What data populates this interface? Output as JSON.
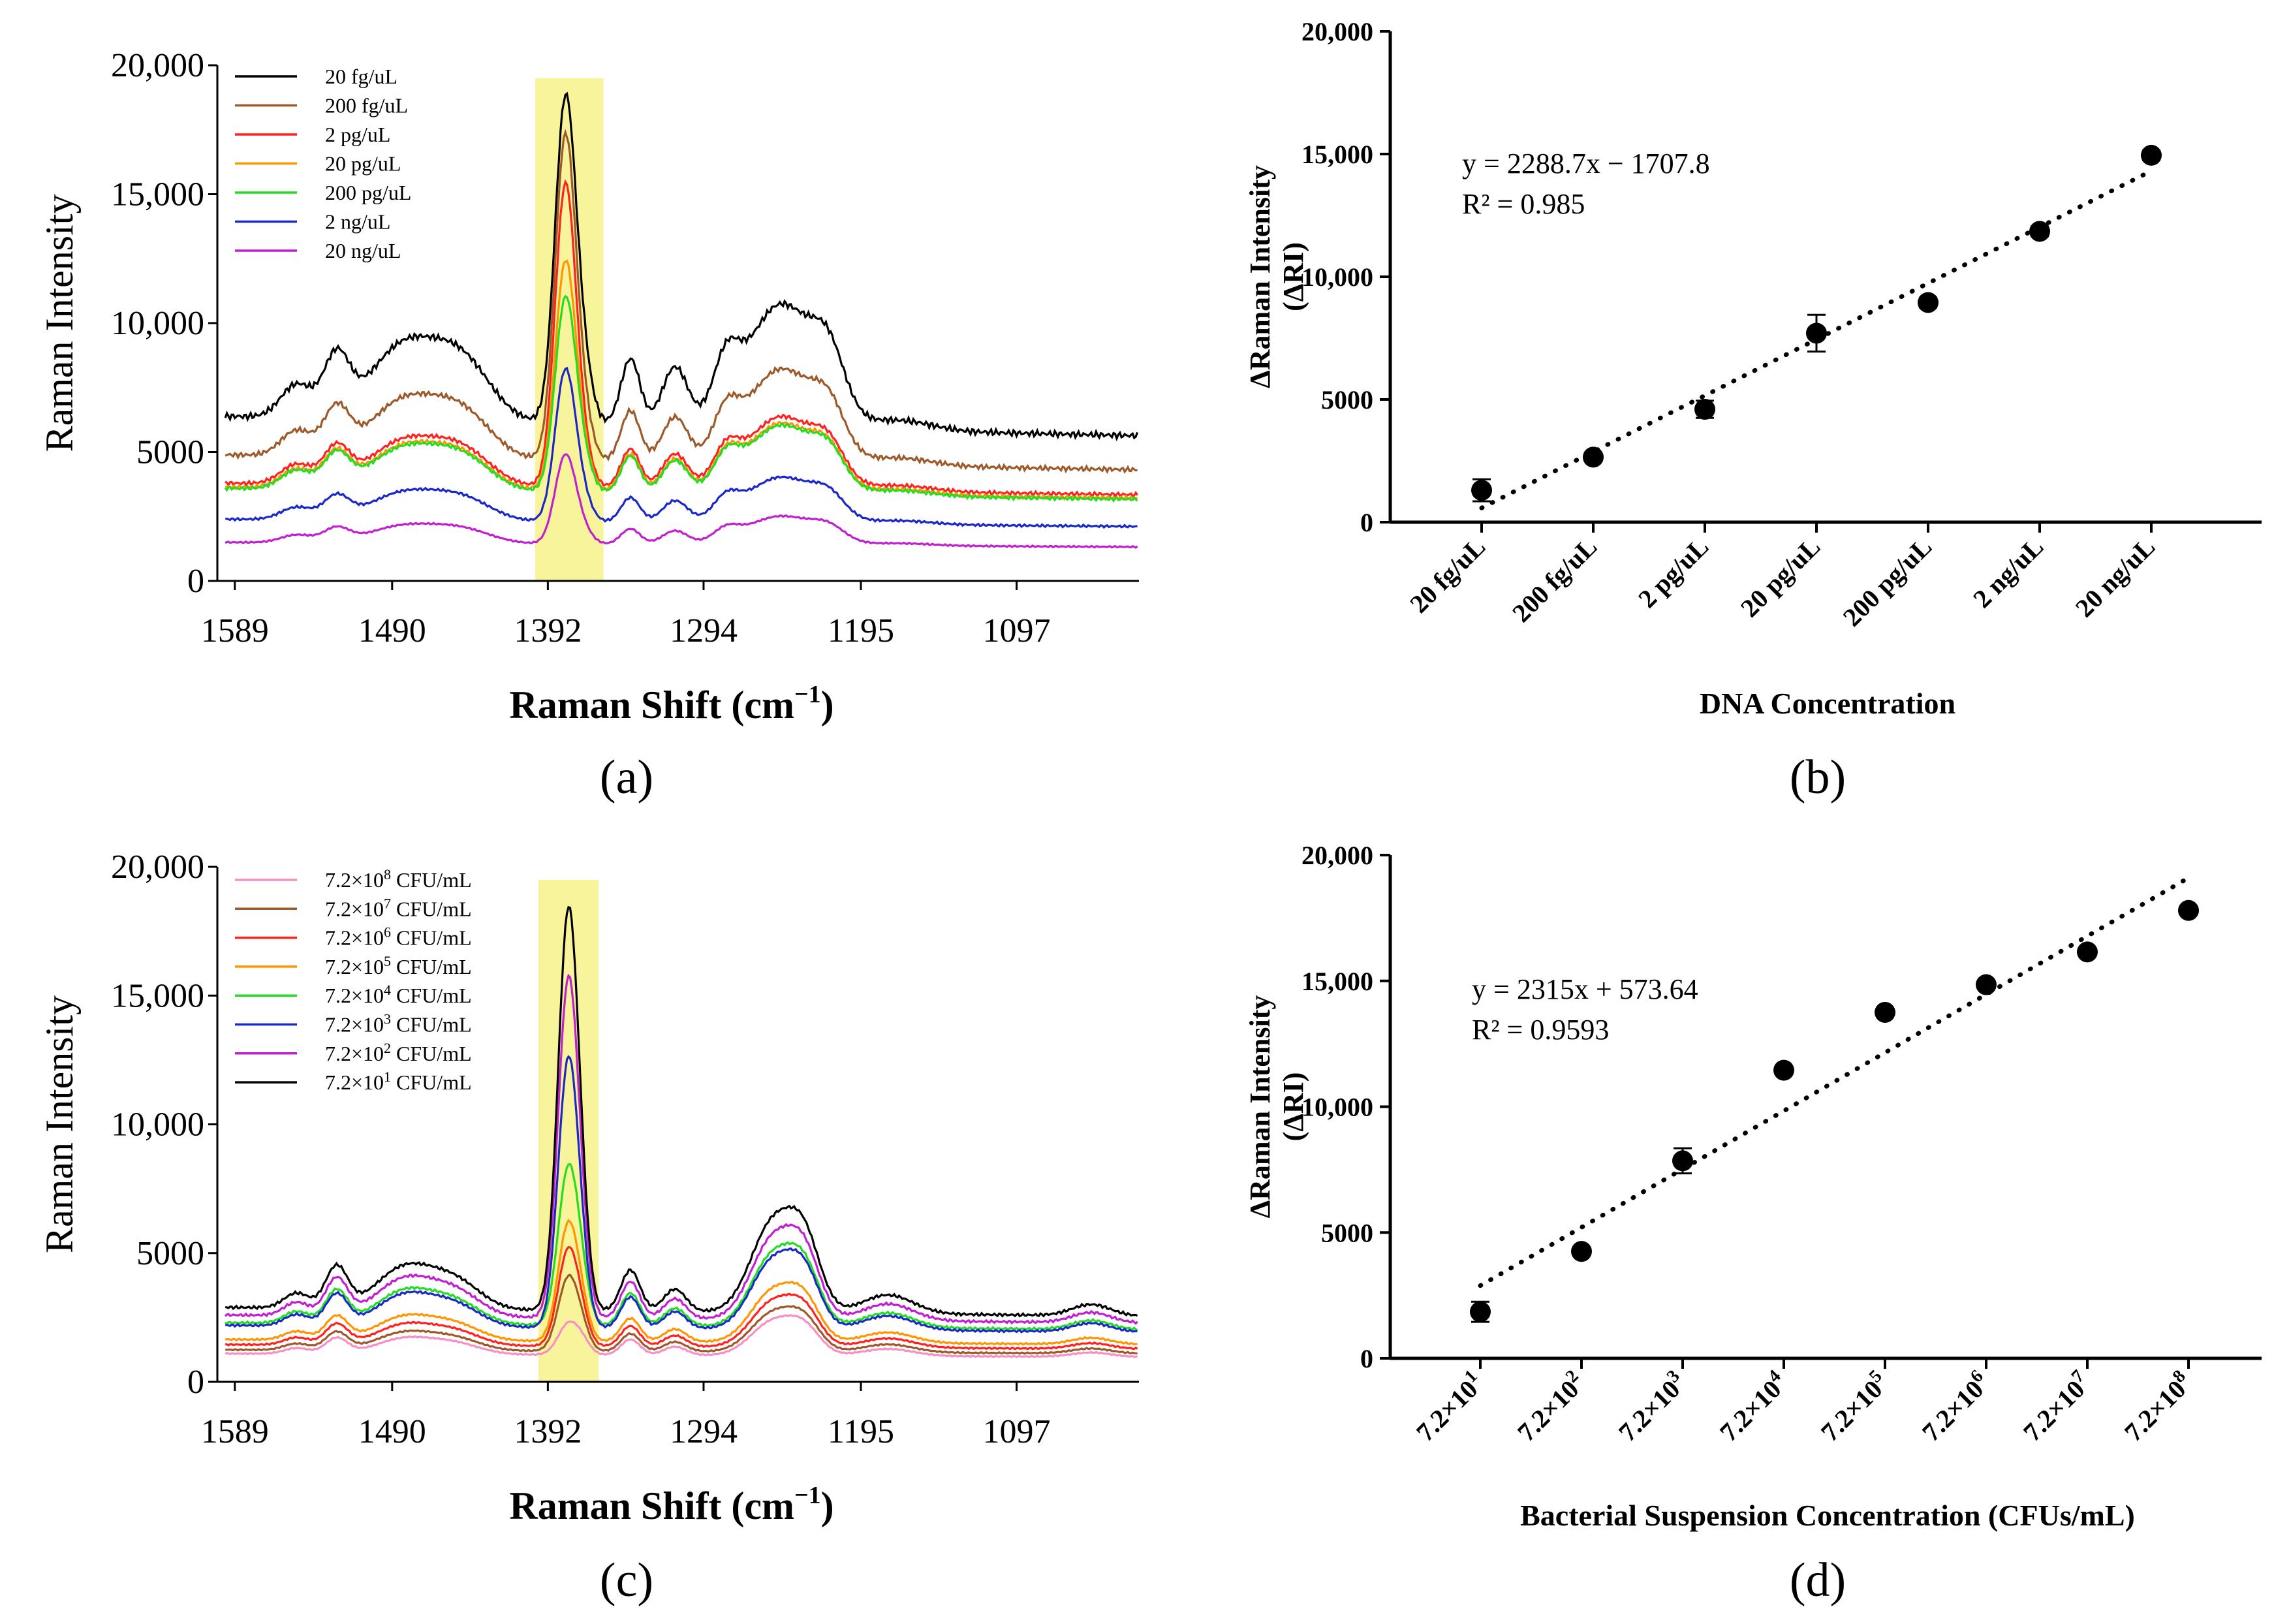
{
  "chart_data": [
    {
      "id": "a",
      "type": "line",
      "panel_label": "(a)",
      "xlabel_main": "Raman Shift (cm",
      "xlabel_sup": "−1",
      "xlabel_close": ")",
      "ylabel": "Raman Intensity",
      "xlim": [
        1600,
        1020
      ],
      "ylim": [
        0,
        20000
      ],
      "xticks": [
        "1589",
        "1490",
        "1392",
        "1294",
        "1195",
        "1097"
      ],
      "xtick_values": [
        1589,
        1490,
        1392,
        1294,
        1195,
        1097
      ],
      "yticks": [
        "0",
        "5000",
        "10,000",
        "15,000",
        "20,000"
      ],
      "ytick_values": [
        0,
        5000,
        10000,
        15000,
        20000
      ],
      "highlight_x": [
        1400,
        1357
      ],
      "highlight_color": "#f7f28a",
      "series": [
        {
          "name": "20 fg/uL",
          "color": "#000000",
          "base": 6400,
          "peak": 18800
        },
        {
          "name": "200 fg/uL",
          "color": "#9c5a2a",
          "base": 4900,
          "peak": 17300
        },
        {
          "name": "2 pg/uL",
          "color": "#ff2020",
          "base": 3800,
          "peak": 15400
        },
        {
          "name": "20 pg/uL",
          "color": "#ff9500",
          "base": 3650,
          "peak": 12400
        },
        {
          "name": "200 pg/uL",
          "color": "#22dd22",
          "base": 3600,
          "peak": 11000
        },
        {
          "name": "2 ng/uL",
          "color": "#1b28c8",
          "base": 2400,
          "peak": 8200
        },
        {
          "name": "20 ng/uL",
          "color": "#c020d0",
          "base": 1500,
          "peak": 4900
        }
      ]
    },
    {
      "id": "b",
      "type": "scatter",
      "panel_label": "(b)",
      "xlabel": "DNA Concentration",
      "ylabel": "ΔRaman Intensity",
      "ylabel2": "(ΔRI)",
      "categories": [
        "20 fg/uL",
        "200 fg/uL",
        "2 pg/uL",
        "20 pg/uL",
        "200 pg/uL",
        "2 ng/uL",
        "20 ng/uL"
      ],
      "values": [
        1300,
        2650,
        4600,
        7700,
        8950,
        11850,
        14950
      ],
      "errors": [
        450,
        150,
        350,
        750,
        200,
        200,
        200
      ],
      "fit": {
        "slope": 2288.7,
        "intercept": -1707.8
      },
      "equation": "y = 2288.7x − 1707.8",
      "r2": "R² = 0.985",
      "ylim": [
        0,
        20000
      ],
      "yticks": [
        "0",
        "5000",
        "10,000",
        "15,000",
        "20,000"
      ],
      "ytick_values": [
        0,
        5000,
        10000,
        15000,
        20000
      ]
    },
    {
      "id": "c",
      "type": "line",
      "panel_label": "(c)",
      "xlabel_main": "Raman Shift (cm",
      "xlabel_sup": "−1",
      "xlabel_close": ")",
      "ylabel": "Raman Intensity",
      "xlim": [
        1600,
        1020
      ],
      "ylim": [
        0,
        20000
      ],
      "xticks": [
        "1589",
        "1490",
        "1392",
        "1294",
        "1195",
        "1097"
      ],
      "xtick_values": [
        1589,
        1490,
        1392,
        1294,
        1195,
        1097
      ],
      "yticks": [
        "0",
        "5000",
        "10,000",
        "15,000",
        "20,000"
      ],
      "ytick_values": [
        0,
        5000,
        10000,
        15000,
        20000
      ],
      "highlight_x": [
        1398,
        1360
      ],
      "highlight_color": "#f7f28a",
      "series": [
        {
          "name_base": "7.2×10",
          "name_exp": "8",
          "name_unit": " CFU/mL",
          "color": "#f78fc6",
          "base": 1100,
          "peak": 2300
        },
        {
          "name_base": "7.2×10",
          "name_exp": "7",
          "name_unit": " CFU/mL",
          "color": "#9c5a2a",
          "base": 1250,
          "peak": 4100
        },
        {
          "name_base": "7.2×10",
          "name_exp": "6",
          "name_unit": " CFU/mL",
          "color": "#ff2020",
          "base": 1450,
          "peak": 5200
        },
        {
          "name_base": "7.2×10",
          "name_exp": "5",
          "name_unit": " CFU/mL",
          "color": "#ff9500",
          "base": 1650,
          "peak": 6200
        },
        {
          "name_base": "7.2×10",
          "name_exp": "4",
          "name_unit": " CFU/mL",
          "color": "#22dd22",
          "base": 2300,
          "peak": 8400
        },
        {
          "name_base": "7.2×10",
          "name_exp": "3",
          "name_unit": " CFU/mL",
          "color": "#1b28c8",
          "base": 2200,
          "peak": 12600
        },
        {
          "name_base": "7.2×10",
          "name_exp": "2",
          "name_unit": " CFU/mL",
          "color": "#c020d0",
          "base": 2600,
          "peak": 15700
        },
        {
          "name_base": "7.2×10",
          "name_exp": "1",
          "name_unit": " CFU/mL",
          "color": "#000000",
          "base": 2900,
          "peak": 18400
        }
      ]
    },
    {
      "id": "d",
      "type": "scatter",
      "panel_label": "(d)",
      "xlabel": "Bacterial Suspension Concentration (CFUs/mL)",
      "ylabel": "ΔRaman Intensity",
      "ylabel2": "(ΔRI)",
      "categories_base": "7.2×10",
      "categories_exp": [
        "1",
        "2",
        "3",
        "4",
        "5",
        "6",
        "7",
        "8"
      ],
      "values": [
        1850,
        4250,
        7850,
        11450,
        13750,
        14850,
        16150,
        17800
      ],
      "errors": [
        400,
        150,
        500,
        150,
        150,
        150,
        150,
        150
      ],
      "fit": {
        "slope": 2315,
        "intercept": 573.64
      },
      "equation": "y = 2315x + 573.64",
      "r2": "R² = 0.9593",
      "ylim": [
        0,
        20000
      ],
      "yticks": [
        "0",
        "5000",
        "10,000",
        "15,000",
        "20,000"
      ],
      "ytick_values": [
        0,
        5000,
        10000,
        15000,
        20000
      ]
    }
  ]
}
